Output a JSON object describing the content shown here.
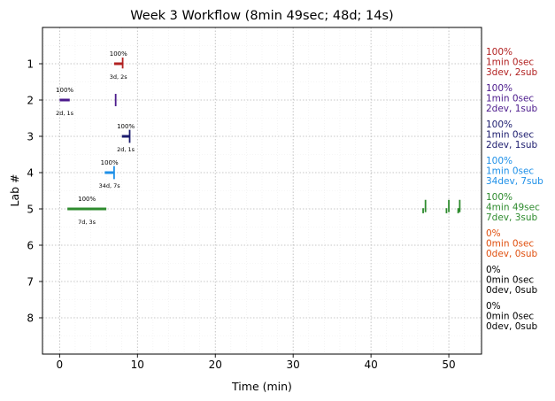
{
  "chart_data": {
    "type": "timeline",
    "title": "Week 3 Workflow (8min 49sec; 48d; 14s)",
    "xlabel": "Time (min)",
    "ylabel": "Lab #",
    "xlim": [
      -2.2,
      54.2
    ],
    "ylim": [
      9.0,
      0.0
    ],
    "x_ticks": [
      0,
      10,
      20,
      30,
      40,
      50
    ],
    "y_ticks": [
      1,
      2,
      3,
      4,
      5,
      6,
      7,
      8
    ],
    "grid": true,
    "minor_grid": true,
    "labs": [
      {
        "lab": 1,
        "color": "#b22222",
        "pct_label": "100%",
        "count_label": "3d, 2s",
        "bar": [
          7.0,
          8.1
        ],
        "ticks": [
          {
            "x": 8.1,
            "height": 0.3,
            "offset": -0.02
          }
        ],
        "summary": [
          "100%",
          "1min 0sec",
          "3dev, 2sub"
        ]
      },
      {
        "lab": 2,
        "color": "#4b1a8c",
        "pct_label": "100%",
        "count_label": "2d, 1s",
        "bar": [
          0.0,
          1.3
        ],
        "ticks": [
          {
            "x": 7.2,
            "height": 0.34,
            "offset": 0.0
          }
        ],
        "summary": [
          "100%",
          "1min 0sec",
          "2dev, 1sub"
        ]
      },
      {
        "lab": 3,
        "color": "#1c1c6e",
        "pct_label": "100%",
        "count_label": "2d, 1s",
        "bar": [
          8.0,
          9.0
        ],
        "ticks": [
          {
            "x": 9.0,
            "height": 0.36,
            "offset": 0.0
          }
        ],
        "summary": [
          "100%",
          "1min 0sec",
          "2dev, 1sub"
        ]
      },
      {
        "lab": 4,
        "color": "#1e90e8",
        "pct_label": "100%",
        "count_label": "34d, 7s",
        "bar": [
          5.8,
          7.0
        ],
        "ticks": [
          {
            "x": 7.0,
            "height": 0.36,
            "offset": 0.0
          }
        ],
        "summary": [
          "100%",
          "1min 0sec",
          "34dev, 7sub"
        ]
      },
      {
        "lab": 5,
        "color": "#2e8b2e",
        "pct_label": "100%",
        "count_label": "7d, 3s",
        "bar": [
          1.0,
          6.0
        ],
        "ticks": [
          {
            "x": 46.7,
            "height": 0.14,
            "offset": 0.05
          },
          {
            "x": 47.0,
            "height": 0.34,
            "offset": -0.08
          },
          {
            "x": 49.7,
            "height": 0.14,
            "offset": 0.05
          },
          {
            "x": 50.0,
            "height": 0.34,
            "offset": -0.08
          },
          {
            "x": 51.2,
            "height": 0.14,
            "offset": 0.05
          },
          {
            "x": 51.4,
            "height": 0.34,
            "offset": -0.08
          }
        ],
        "summary": [
          "100%",
          "4min 49sec",
          "7dev, 3sub"
        ]
      },
      {
        "lab": 6,
        "color": "#e0500f",
        "summary": [
          "0%",
          "0min 0sec",
          "0dev, 0sub"
        ]
      },
      {
        "lab": 7,
        "color": "#000000",
        "summary": [
          "0%",
          "0min 0sec",
          "0dev, 0sub"
        ]
      },
      {
        "lab": 8,
        "color": "#000000",
        "summary": [
          "0%",
          "0min 0sec",
          "0dev, 0sub"
        ]
      }
    ]
  }
}
